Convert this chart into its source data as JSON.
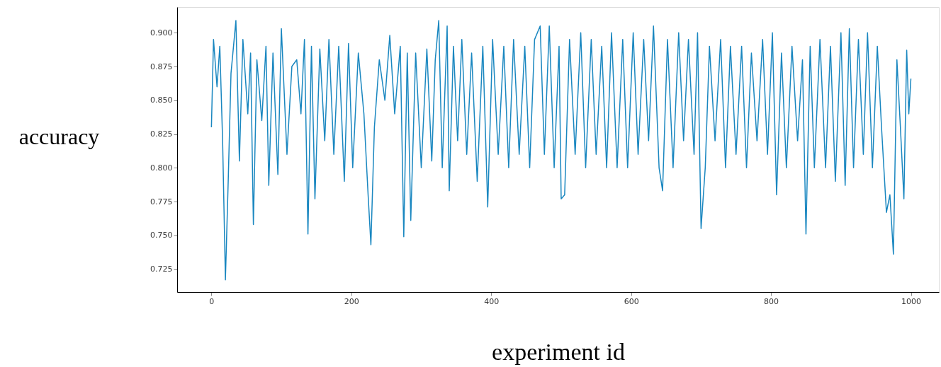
{
  "chart_data": {
    "type": "line",
    "xlabel": "experiment id",
    "ylabel": "accuracy",
    "xlim": [
      -49,
      1040
    ],
    "ylim": [
      0.708,
      0.919
    ],
    "xticks": [
      0,
      200,
      400,
      600,
      800,
      1000
    ],
    "yticks": [
      {
        "value": 0.725,
        "label": "0.725"
      },
      {
        "value": 0.75,
        "label": "0.750"
      },
      {
        "value": 0.775,
        "label": "0.775"
      },
      {
        "value": 0.8,
        "label": "0.800"
      },
      {
        "value": 0.825,
        "label": "0.825"
      },
      {
        "value": 0.85,
        "label": "0.850"
      },
      {
        "value": 0.875,
        "label": "0.875"
      },
      {
        "value": 0.9,
        "label": "0.900"
      }
    ],
    "grid": false,
    "marker": "none",
    "line_style": "solid",
    "series": [
      {
        "color": "#1a87c0",
        "x": [
          0,
          3,
          8,
          12,
          16,
          20,
          24,
          28,
          35,
          40,
          45,
          52,
          56,
          60,
          65,
          72,
          78,
          82,
          88,
          95,
          100,
          108,
          115,
          122,
          128,
          133,
          138,
          143,
          148,
          155,
          162,
          168,
          175,
          182,
          190,
          196,
          202,
          210,
          218,
          224,
          228,
          233,
          240,
          248,
          255,
          262,
          270,
          275,
          280,
          285,
          292,
          300,
          308,
          315,
          320,
          325,
          330,
          337,
          340,
          346,
          352,
          358,
          365,
          372,
          380,
          388,
          395,
          402,
          410,
          418,
          425,
          432,
          440,
          448,
          455,
          462,
          470,
          476,
          483,
          490,
          497,
          500,
          505,
          512,
          520,
          528,
          535,
          543,
          550,
          558,
          565,
          572,
          580,
          588,
          595,
          603,
          610,
          618,
          625,
          632,
          640,
          645,
          652,
          660,
          668,
          675,
          682,
          690,
          695,
          700,
          706,
          712,
          720,
          728,
          735,
          742,
          750,
          758,
          765,
          772,
          780,
          788,
          795,
          802,
          808,
          815,
          822,
          830,
          838,
          845,
          850,
          856,
          862,
          870,
          878,
          885,
          892,
          900,
          906,
          912,
          918,
          925,
          932,
          938,
          945,
          952,
          958,
          965,
          970,
          975,
          980,
          985,
          990,
          994,
          997,
          1000
        ],
        "values": [
          0.83,
          0.895,
          0.86,
          0.89,
          0.82,
          0.717,
          0.79,
          0.87,
          0.909,
          0.805,
          0.895,
          0.84,
          0.885,
          0.758,
          0.88,
          0.835,
          0.89,
          0.787,
          0.885,
          0.795,
          0.903,
          0.81,
          0.875,
          0.88,
          0.84,
          0.895,
          0.751,
          0.89,
          0.777,
          0.888,
          0.82,
          0.895,
          0.81,
          0.89,
          0.79,
          0.892,
          0.8,
          0.885,
          0.84,
          0.78,
          0.743,
          0.83,
          0.88,
          0.85,
          0.898,
          0.84,
          0.89,
          0.749,
          0.885,
          0.761,
          0.885,
          0.8,
          0.888,
          0.805,
          0.88,
          0.909,
          0.8,
          0.905,
          0.783,
          0.89,
          0.82,
          0.895,
          0.81,
          0.885,
          0.79,
          0.89,
          0.771,
          0.895,
          0.81,
          0.89,
          0.8,
          0.895,
          0.81,
          0.89,
          0.8,
          0.895,
          0.905,
          0.81,
          0.905,
          0.8,
          0.89,
          0.777,
          0.78,
          0.895,
          0.81,
          0.9,
          0.8,
          0.895,
          0.81,
          0.89,
          0.8,
          0.9,
          0.8,
          0.895,
          0.8,
          0.9,
          0.81,
          0.895,
          0.82,
          0.905,
          0.8,
          0.783,
          0.895,
          0.8,
          0.9,
          0.82,
          0.895,
          0.81,
          0.9,
          0.755,
          0.8,
          0.89,
          0.82,
          0.895,
          0.8,
          0.89,
          0.81,
          0.89,
          0.8,
          0.885,
          0.82,
          0.895,
          0.81,
          0.9,
          0.78,
          0.885,
          0.8,
          0.89,
          0.82,
          0.88,
          0.751,
          0.89,
          0.8,
          0.895,
          0.8,
          0.89,
          0.79,
          0.9,
          0.787,
          0.903,
          0.8,
          0.895,
          0.81,
          0.9,
          0.8,
          0.89,
          0.83,
          0.767,
          0.78,
          0.736,
          0.88,
          0.83,
          0.777,
          0.887,
          0.84,
          0.866
        ]
      }
    ]
  }
}
